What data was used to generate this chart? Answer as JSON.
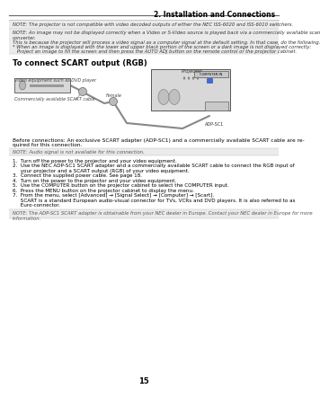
{
  "title": "2. Installation and Connections",
  "page_num": "15",
  "bg_color": "#ffffff",
  "note1": "NOTE: The projector is not compatible with video decoded outputs of either the NEC ISS-6020 and ISS-6010 switchers.",
  "note2_lines": [
    "NOTE: An image may not be displayed correctly when a Video or S-Video source is played back via a commercially available scan",
    "converter.",
    "This is because the projector will process a video signal as a computer signal at the default setting. In that case, do the following.",
    "* When an image is displayed with the lower and upper black portion of the screen or a dark image is not displayed correctly:",
    "   Project an image to fill the screen and then press the AUTO ADJ button on the remote control or the projector cabinet."
  ],
  "section_heading": "To connect SCART output (RGB)",
  "before_conn1": "Before connections: An exclusive SCART adapter (ADP-SC1) and a commercially available SCART cable are re-",
  "before_conn2": "quired for this connection.",
  "note3": "NOTE: Audio signal is not available for this connection.",
  "steps": [
    "1.  Turn off the power to the projector and your video equipment.",
    "2.  Use the NEC ADP-SC1 SCART adapter and a commercially available SCART cable to connect the RGB input of",
    "     your projector and a SCART output (RGB) of your video equipment.",
    "3.  Connect the supplied power cable. See page 18.",
    "4.  Turn on the power to the projector and your video equipment.",
    "5.  Use the COMPUTER button on the projector cabinet to select the COMPUTER input.",
    "6.  Press the MENU button on the projector cabinet to display the menu.",
    "7.  From the menu, select [Advanced] → [Signal Select] → [Computer] → [Scart].",
    "     SCART is a standard European audio-visual connector for TVs, VCRs and DVD players. It is also referred to as",
    "     Euro-connector."
  ],
  "note4_lines": [
    "NOTE: The ADP-SC1 SCART adapter is obtainable from your NEC dealer in Europe. Contact your NEC dealer in Europe for more",
    "information."
  ]
}
